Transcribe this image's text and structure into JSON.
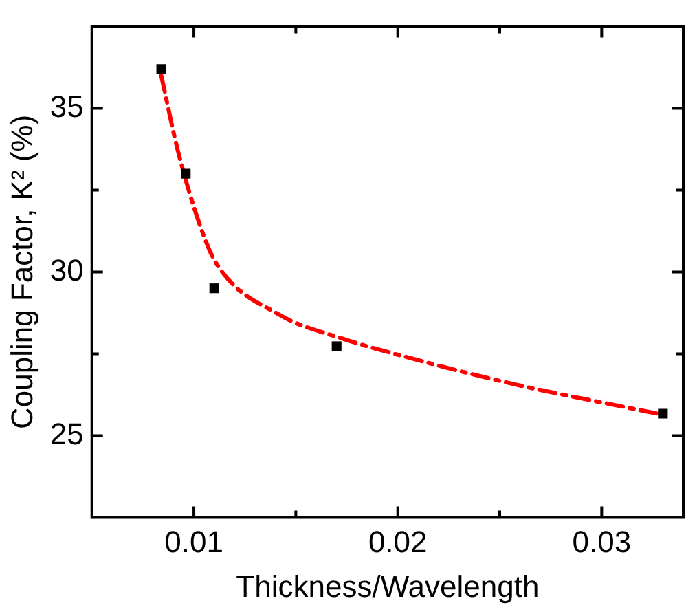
{
  "chart_data": {
    "type": "scatter",
    "xlabel": "Thickness/Wavelength",
    "ylabel": "Coupling Factor, K² (%)",
    "xlim": [
      0.005,
      0.034
    ],
    "ylim": [
      22.5,
      37.5
    ],
    "xticks": [
      {
        "value": 0.01,
        "label": "0.01"
      },
      {
        "value": 0.015,
        "label": null
      },
      {
        "value": 0.02,
        "label": "0.02"
      },
      {
        "value": 0.025,
        "label": null
      },
      {
        "value": 0.03,
        "label": "0.03"
      }
    ],
    "yticks": [
      25,
      {
        "value": 27.5,
        "label": null
      },
      30,
      {
        "value": 32.5,
        "label": null
      },
      35
    ],
    "grid": false,
    "legend": false,
    "series": [
      {
        "type": "line",
        "color": "#ff0000",
        "line_style": "dashed",
        "marker": "none",
        "x": [
          0.0084,
          0.0092,
          0.0103,
          0.0111,
          0.0142,
          0.0171,
          0.0209,
          0.0257,
          0.0305,
          0.033
        ],
        "values": [
          36.0,
          33.74,
          31.42,
          30.26,
          28.69,
          28.0,
          27.32,
          26.57,
          25.95,
          25.64
        ]
      },
      {
        "type": "scatter",
        "color": "#000000",
        "marker": "square",
        "x": [
          0.0084,
          0.0096,
          0.011,
          0.017,
          0.033
        ],
        "values": [
          36.2,
          33.0,
          29.5,
          27.73,
          25.67
        ]
      }
    ]
  }
}
